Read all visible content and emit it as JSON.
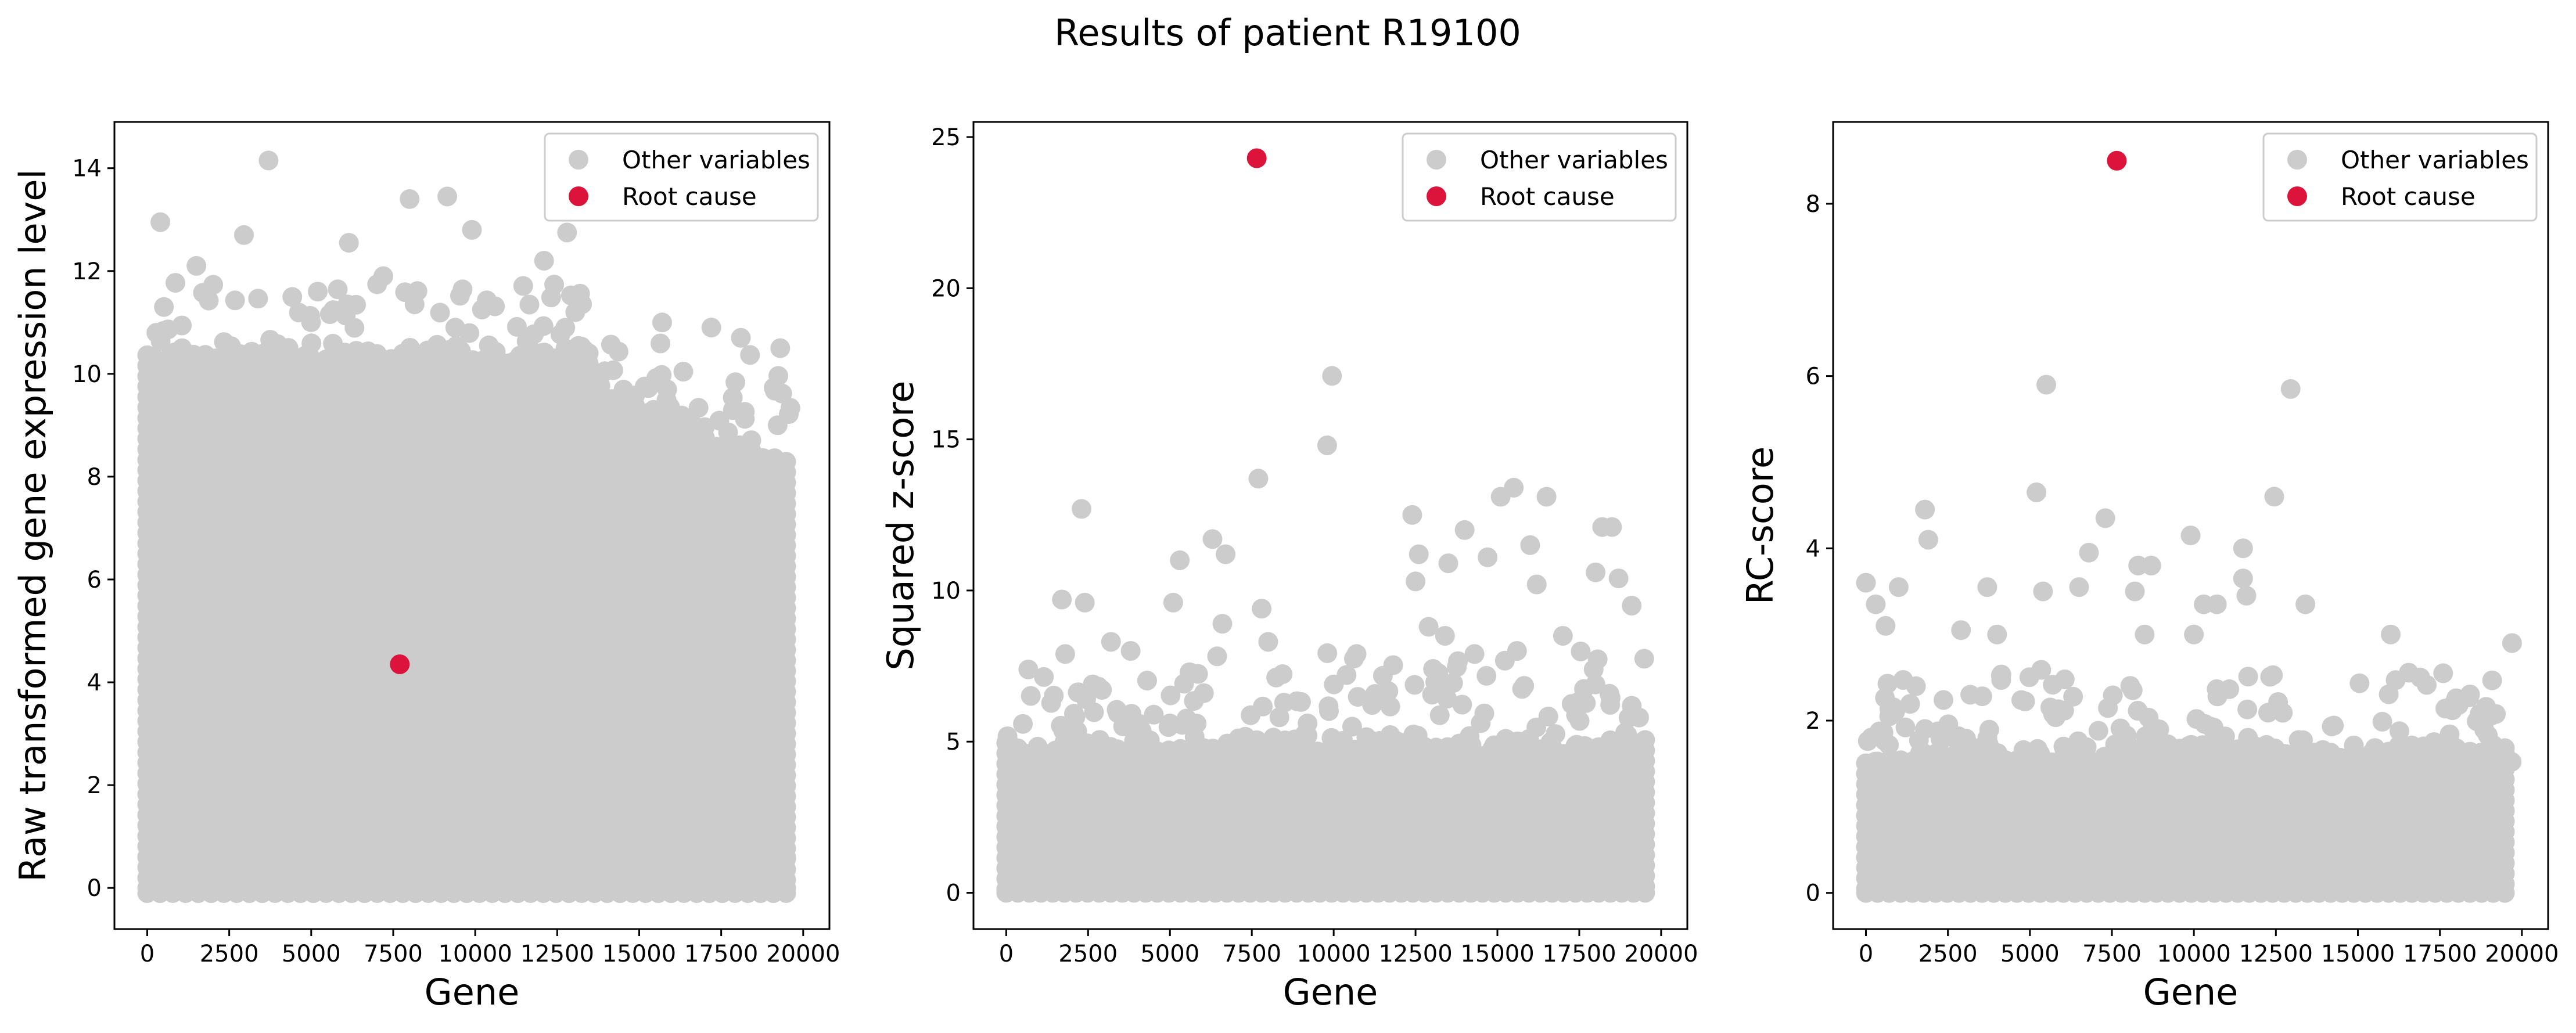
{
  "title": "Results of patient R19100",
  "colors": {
    "other": "#cccccc",
    "root": "#dc143c"
  },
  "chart_data": [
    {
      "type": "scatter",
      "xlabel": "Gene",
      "ylabel": "Raw transformed gene expression level",
      "xlim": [
        -1000,
        20800
      ],
      "ylim": [
        -0.8,
        14.9
      ],
      "xticks": [
        0,
        2500,
        5000,
        7500,
        10000,
        12500,
        15000,
        17500,
        20000
      ],
      "yticks": [
        0,
        2,
        4,
        6,
        8,
        10,
        12,
        14
      ],
      "legend": {
        "position": "top-right",
        "entries": [
          "Other variables",
          "Root cause"
        ]
      },
      "n_genes": 19700,
      "band": {
        "low": 0.0,
        "high": 10.0,
        "profile": "raw"
      },
      "extra_lines": [
        -0.1,
        0.6
      ],
      "other_highlights": [
        {
          "x": 3700,
          "y": 14.15
        },
        {
          "x": 400,
          "y": 12.95
        },
        {
          "x": 2950,
          "y": 12.7
        },
        {
          "x": 6150,
          "y": 12.55
        },
        {
          "x": 9150,
          "y": 13.45
        },
        {
          "x": 8000,
          "y": 13.4
        },
        {
          "x": 9900,
          "y": 12.8
        },
        {
          "x": 12100,
          "y": 12.2
        },
        {
          "x": 12800,
          "y": 12.75
        },
        {
          "x": 13050,
          "y": 11.2
        },
        {
          "x": 15700,
          "y": 11.0
        },
        {
          "x": 17200,
          "y": 10.9
        },
        {
          "x": 18100,
          "y": 10.7
        },
        {
          "x": 19300,
          "y": 10.5
        },
        {
          "x": 1500,
          "y": 12.1
        },
        {
          "x": 5200,
          "y": 11.6
        },
        {
          "x": 7200,
          "y": 11.9
        }
      ],
      "root_cause": {
        "x": 7700,
        "y": 4.35
      }
    },
    {
      "type": "scatter",
      "xlabel": "Gene",
      "ylabel": "Squared z-score",
      "xlim": [
        -1000,
        20800
      ],
      "ylim": [
        -1.2,
        25.5
      ],
      "xticks": [
        0,
        2500,
        5000,
        7500,
        10000,
        12500,
        15000,
        17500,
        20000
      ],
      "yticks": [
        0,
        5,
        10,
        15,
        20,
        25
      ],
      "legend": {
        "position": "top-right",
        "entries": [
          "Other variables",
          "Root cause"
        ]
      },
      "n_genes": 19700,
      "band": {
        "low": 0.0,
        "high": 4.5,
        "profile": "flat"
      },
      "extra_lines": [],
      "other_highlights": [
        {
          "x": 9950,
          "y": 17.1
        },
        {
          "x": 9800,
          "y": 14.8
        },
        {
          "x": 7700,
          "y": 13.7
        },
        {
          "x": 15500,
          "y": 13.4
        },
        {
          "x": 15100,
          "y": 13.1
        },
        {
          "x": 16500,
          "y": 13.1
        },
        {
          "x": 2300,
          "y": 12.7
        },
        {
          "x": 12400,
          "y": 12.5
        },
        {
          "x": 14000,
          "y": 12.0
        },
        {
          "x": 18200,
          "y": 12.1
        },
        {
          "x": 18500,
          "y": 12.1
        },
        {
          "x": 6300,
          "y": 11.7
        },
        {
          "x": 16000,
          "y": 11.5
        },
        {
          "x": 6700,
          "y": 11.2
        },
        {
          "x": 5300,
          "y": 11.0
        },
        {
          "x": 12600,
          "y": 11.2
        },
        {
          "x": 13500,
          "y": 10.9
        },
        {
          "x": 14700,
          "y": 11.1
        },
        {
          "x": 12500,
          "y": 10.3
        },
        {
          "x": 16200,
          "y": 10.2
        },
        {
          "x": 18000,
          "y": 10.6
        },
        {
          "x": 18700,
          "y": 10.4
        },
        {
          "x": 1700,
          "y": 9.7
        },
        {
          "x": 2400,
          "y": 9.6
        },
        {
          "x": 5100,
          "y": 9.6
        },
        {
          "x": 7800,
          "y": 9.4
        },
        {
          "x": 19100,
          "y": 9.5
        },
        {
          "x": 12900,
          "y": 8.8
        },
        {
          "x": 13400,
          "y": 8.5
        },
        {
          "x": 6600,
          "y": 8.9
        },
        {
          "x": 3200,
          "y": 8.3
        },
        {
          "x": 8000,
          "y": 8.3
        },
        {
          "x": 17000,
          "y": 8.5
        },
        {
          "x": 14300,
          "y": 7.9
        },
        {
          "x": 15600,
          "y": 8.0
        },
        {
          "x": 1800,
          "y": 7.9
        },
        {
          "x": 3800,
          "y": 8.0
        },
        {
          "x": 10700,
          "y": 7.9
        }
      ],
      "root_cause": {
        "x": 7650,
        "y": 24.3
      }
    },
    {
      "type": "scatter",
      "xlabel": "Gene",
      "ylabel": "RC-score",
      "xlim": [
        -1000,
        20800
      ],
      "ylim": [
        -0.42,
        8.95
      ],
      "xticks": [
        0,
        2500,
        5000,
        7500,
        10000,
        12500,
        15000,
        17500,
        20000
      ],
      "yticks": [
        0,
        2,
        4,
        6,
        8
      ],
      "legend": {
        "position": "top-right",
        "entries": [
          "Other variables",
          "Root cause"
        ]
      },
      "n_genes": 19700,
      "band": {
        "low": 0.0,
        "high": 1.5,
        "profile": "flat"
      },
      "extra_lines": [],
      "other_highlights": [
        {
          "x": 5500,
          "y": 5.9
        },
        {
          "x": 12950,
          "y": 5.85
        },
        {
          "x": 5200,
          "y": 4.65
        },
        {
          "x": 12450,
          "y": 4.6
        },
        {
          "x": 1800,
          "y": 4.45
        },
        {
          "x": 7300,
          "y": 4.35
        },
        {
          "x": 1900,
          "y": 4.1
        },
        {
          "x": 9900,
          "y": 4.15
        },
        {
          "x": 6800,
          "y": 3.95
        },
        {
          "x": 11500,
          "y": 4.0
        },
        {
          "x": 0,
          "y": 3.6
        },
        {
          "x": 1000,
          "y": 3.55
        },
        {
          "x": 3700,
          "y": 3.55
        },
        {
          "x": 6500,
          "y": 3.55
        },
        {
          "x": 8300,
          "y": 3.8
        },
        {
          "x": 8700,
          "y": 3.8
        },
        {
          "x": 11500,
          "y": 3.65
        },
        {
          "x": 300,
          "y": 3.35
        },
        {
          "x": 10300,
          "y": 3.35
        },
        {
          "x": 10700,
          "y": 3.35
        },
        {
          "x": 13400,
          "y": 3.35
        },
        {
          "x": 5400,
          "y": 3.5
        },
        {
          "x": 8200,
          "y": 3.5
        },
        {
          "x": 11600,
          "y": 3.45
        },
        {
          "x": 600,
          "y": 3.1
        },
        {
          "x": 2900,
          "y": 3.05
        },
        {
          "x": 4000,
          "y": 3.0
        },
        {
          "x": 16000,
          "y": 3.0
        },
        {
          "x": 19700,
          "y": 2.9
        },
        {
          "x": 8500,
          "y": 3.0
        },
        {
          "x": 10000,
          "y": 3.0
        },
        {
          "x": 17600,
          "y": 2.55
        },
        {
          "x": 16900,
          "y": 2.5
        }
      ],
      "root_cause": {
        "x": 7650,
        "y": 8.5
      }
    }
  ]
}
